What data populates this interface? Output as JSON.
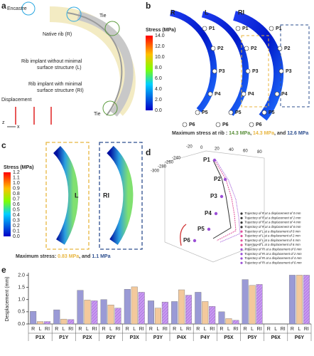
{
  "panel_a": {
    "label": "a",
    "encastre": "Encastre",
    "tie": "Tie",
    "native": "Native rib (R)",
    "implant_l": [
      "Rib implant without minimal",
      "surface structure (L)"
    ],
    "implant_ri": [
      "Rib implant with minimal",
      "surface structure (RI)"
    ],
    "displacement": "Displacement",
    "axis_x": "x",
    "axis_z": "z"
  },
  "panel_b": {
    "label": "b",
    "models": [
      "R",
      "L",
      "RI"
    ],
    "colorbar_title": "Stress (MPa)",
    "colorbar_ticks": [
      "14.0",
      "12.0",
      "10.0",
      "8.0",
      "6.0",
      "4.0",
      "2.0",
      "0.0"
    ],
    "points": [
      "P1",
      "P2",
      "P3",
      "P4",
      "P5",
      "P6"
    ],
    "caption": [
      {
        "text": "Maximum stress at rib : ",
        "color": "#333333"
      },
      {
        "text": "14.3 MPa",
        "color": "#5a8f3a"
      },
      {
        "text": ", ",
        "color": "#333333"
      },
      {
        "text": "14.3 MPa",
        "color": "#e8b640"
      },
      {
        "text": ", and ",
        "color": "#333333"
      },
      {
        "text": "12.6 MPa",
        "color": "#2e4f8f"
      }
    ]
  },
  "panel_c": {
    "label": "c",
    "colorbar_title": "Stress (MPa)",
    "colorbar_ticks": [
      "1.2",
      "1.1",
      "1.0",
      "0.9",
      "0.8",
      "0.7",
      "0.6",
      "0.5",
      "0.4",
      "0.3",
      "0.2",
      "0.1",
      "0.0"
    ],
    "models": [
      "L",
      "RI"
    ],
    "caption": [
      {
        "text": "Maximum stress: ",
        "color": "#333333"
      },
      {
        "text": "0.83 MPa",
        "color": "#e8b640"
      },
      {
        "text": ", and ",
        "color": "#333333"
      },
      {
        "text": "1.1 MPa",
        "color": "#2e4f8f"
      }
    ]
  },
  "panel_d": {
    "label": "d",
    "x_ticks": [
      "-20",
      "0",
      "20",
      "40",
      "60",
      "80"
    ],
    "y_ticks": [
      "-240",
      "-260",
      "-280",
      "-300"
    ],
    "points": [
      "P1",
      "P2",
      "P3",
      "P4",
      "P5",
      "P6"
    ],
    "legend": [
      {
        "text": "Trajectory of R at a displacement of 0 mm",
        "color": "#333333"
      },
      {
        "text": "Trajectory of R at a displacement of 2 mm",
        "color": "#333333"
      },
      {
        "text": "Trajectory of R at a displacement of 4 mm",
        "color": "#333333"
      },
      {
        "text": "Trajectory of R at a displacement of 6 mm",
        "color": "#333333"
      },
      {
        "text": "Trajectory of L at a displacement of 0 mm",
        "color": "#e0509a"
      },
      {
        "text": "Trajectory of L at a displacement of 2 mm",
        "color": "#e0509a"
      },
      {
        "text": "Trajectory of L at a displacement of 4 mm",
        "color": "#e0509a"
      },
      {
        "text": "Trajectory of L at a displacement of 6 mm",
        "color": "#e0509a"
      },
      {
        "text": "Trajectory of RI at a displacement of 0 mm",
        "color": "#9b4fd6"
      },
      {
        "text": "Trajectory of RI at a displacement of 2 mm",
        "color": "#9b4fd6"
      },
      {
        "text": "Trajectory of RI at a displacement of 4 mm",
        "color": "#9b4fd6"
      },
      {
        "text": "Trajectory of RI at a displacement of 6 mm",
        "color": "#9b4fd6"
      }
    ]
  },
  "chart_data": {
    "type": "bar",
    "label": "e",
    "ylabel": "Desplacement (mm)",
    "categories": [
      "P1X",
      "P1Y",
      "P2X",
      "P2Y",
      "P3X",
      "P3Y",
      "P4X",
      "P4Y",
      "P5X",
      "P5Y",
      "P6X",
      "P6Y"
    ],
    "series": [
      {
        "name": "R",
        "color": "#9a9ad6",
        "hatch": false,
        "values": [
          0.52,
          0.58,
          1.38,
          1.0,
          1.42,
          0.95,
          0.92,
          1.3,
          0.5,
          1.82,
          0,
          2.0
        ]
      },
      {
        "name": "L",
        "color": "#f3c99c",
        "hatch": false,
        "values": [
          0.1,
          0.2,
          0.98,
          0.78,
          1.52,
          0.65,
          1.4,
          0.92,
          0.22,
          1.58,
          0,
          2.0
        ]
      },
      {
        "name": "RI",
        "color": "#c99af2",
        "hatch": true,
        "values": [
          0.1,
          0.18,
          0.95,
          0.65,
          1.3,
          0.9,
          1.18,
          0.72,
          0.15,
          1.62,
          0,
          2.0
        ]
      }
    ],
    "ylim": [
      0,
      2.1
    ],
    "yticks": [
      {
        "value": 0,
        "label": "0.0"
      },
      {
        "value": 0.5,
        "label": "0.5"
      },
      {
        "value": 1,
        "label": "1.0"
      },
      {
        "value": 1.5,
        "label": "1.5"
      },
      {
        "value": 2,
        "label": "2.0"
      }
    ]
  }
}
